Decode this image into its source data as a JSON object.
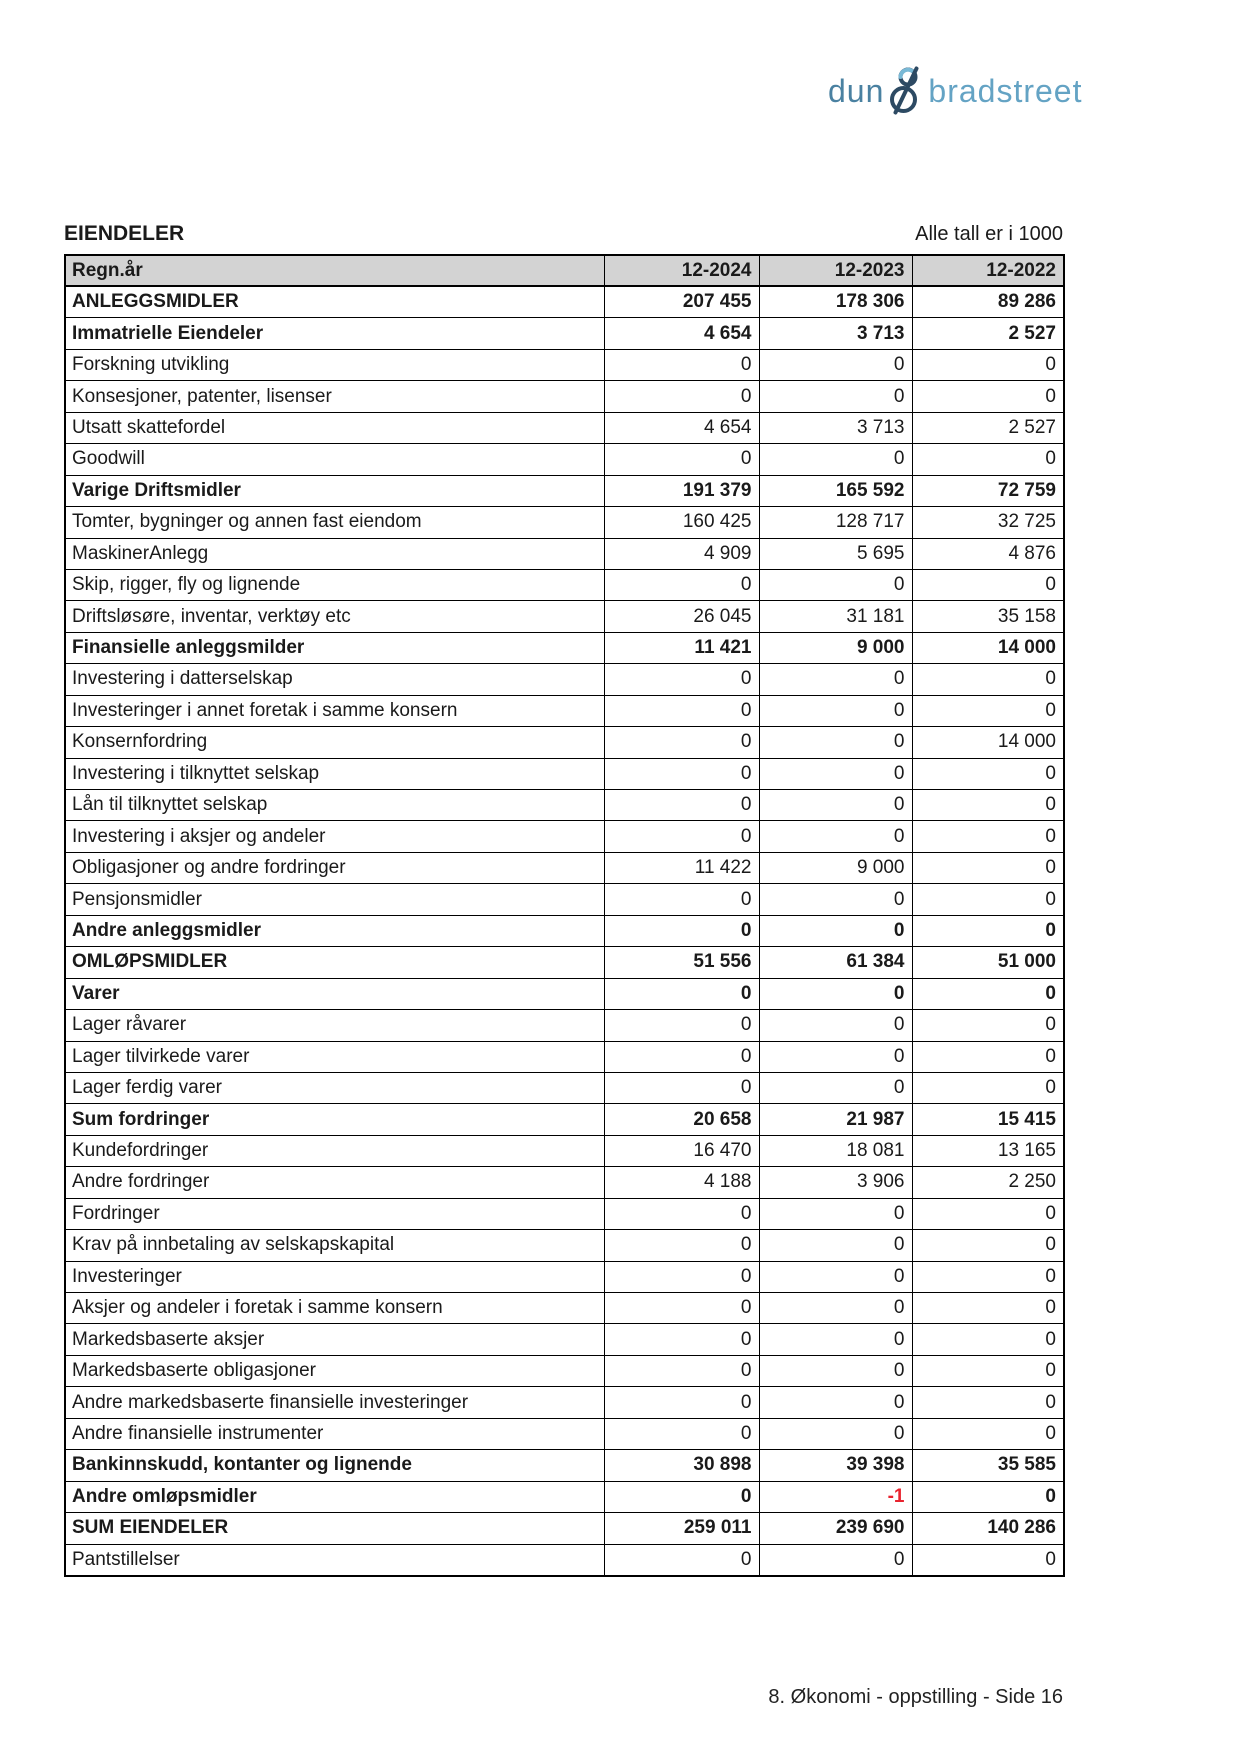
{
  "logo": {
    "part1": "dun",
    "part2": "bradstreet",
    "ampersand_dark": "#2d4a63",
    "ampersand_light": "#79b9d6"
  },
  "header": {
    "title": "EIENDELER",
    "units_note": "Alle tall er i 1000"
  },
  "table": {
    "columns": [
      "Regn.år",
      "12-2024",
      "12-2023",
      "12-2022"
    ],
    "negative_color": "#e8232e",
    "rows": [
      {
        "label": "ANLEGGSMIDLER",
        "bold": true,
        "values": [
          "207 455",
          "178 306",
          "89 286"
        ]
      },
      {
        "label": "Immatrielle Eiendeler",
        "bold": true,
        "values": [
          "4 654",
          "3 713",
          "2 527"
        ]
      },
      {
        "label": "Forskning utvikling",
        "bold": false,
        "values": [
          "0",
          "0",
          "0"
        ]
      },
      {
        "label": "Konsesjoner, patenter, lisenser",
        "bold": false,
        "values": [
          "0",
          "0",
          "0"
        ]
      },
      {
        "label": "Utsatt skattefordel",
        "bold": false,
        "values": [
          "4 654",
          "3 713",
          "2 527"
        ]
      },
      {
        "label": "Goodwill",
        "bold": false,
        "values": [
          "0",
          "0",
          "0"
        ]
      },
      {
        "label": "Varige Driftsmidler",
        "bold": true,
        "values": [
          "191 379",
          "165 592",
          "72 759"
        ]
      },
      {
        "label": "Tomter, bygninger og annen fast eiendom",
        "bold": false,
        "values": [
          "160 425",
          "128 717",
          "32 725"
        ]
      },
      {
        "label": "MaskinerAnlegg",
        "bold": false,
        "values": [
          "4 909",
          "5 695",
          "4 876"
        ]
      },
      {
        "label": "Skip, rigger, fly og lignende",
        "bold": false,
        "values": [
          "0",
          "0",
          "0"
        ]
      },
      {
        "label": "Driftsløsøre, inventar, verktøy etc",
        "bold": false,
        "values": [
          "26 045",
          "31 181",
          "35 158"
        ]
      },
      {
        "label": "Finansielle anleggsmilder",
        "bold": true,
        "values": [
          "11 421",
          "9 000",
          "14 000"
        ]
      },
      {
        "label": "Investering i datterselskap",
        "bold": false,
        "values": [
          "0",
          "0",
          "0"
        ]
      },
      {
        "label": "Investeringer i annet foretak i samme konsern",
        "bold": false,
        "values": [
          "0",
          "0",
          "0"
        ]
      },
      {
        "label": "Konsernfordring",
        "bold": false,
        "values": [
          "0",
          "0",
          "14 000"
        ]
      },
      {
        "label": "Investering i tilknyttet selskap",
        "bold": false,
        "values": [
          "0",
          "0",
          "0"
        ]
      },
      {
        "label": "Lån til tilknyttet selskap",
        "bold": false,
        "values": [
          "0",
          "0",
          "0"
        ]
      },
      {
        "label": "Investering i aksjer og andeler",
        "bold": false,
        "values": [
          "0",
          "0",
          "0"
        ]
      },
      {
        "label": "Obligasjoner og andre fordringer",
        "bold": false,
        "values": [
          "11 422",
          "9 000",
          "0"
        ]
      },
      {
        "label": "Pensjonsmidler",
        "bold": false,
        "values": [
          "0",
          "0",
          "0"
        ]
      },
      {
        "label": "Andre anleggsmidler",
        "bold": true,
        "values": [
          "0",
          "0",
          "0"
        ]
      },
      {
        "label": "OMLØPSMIDLER",
        "bold": true,
        "values": [
          "51 556",
          "61 384",
          "51 000"
        ]
      },
      {
        "label": "Varer",
        "bold": true,
        "values": [
          "0",
          "0",
          "0"
        ]
      },
      {
        "label": "Lager råvarer",
        "bold": false,
        "values": [
          "0",
          "0",
          "0"
        ]
      },
      {
        "label": "Lager tilvirkede varer",
        "bold": false,
        "values": [
          "0",
          "0",
          "0"
        ]
      },
      {
        "label": "Lager ferdig varer",
        "bold": false,
        "values": [
          "0",
          "0",
          "0"
        ]
      },
      {
        "label": "Sum fordringer",
        "bold": true,
        "values": [
          "20 658",
          "21 987",
          "15 415"
        ]
      },
      {
        "label": "Kundefordringer",
        "bold": false,
        "values": [
          "16 470",
          "18 081",
          "13 165"
        ]
      },
      {
        "label": "Andre fordringer",
        "bold": false,
        "values": [
          "4 188",
          "3 906",
          "2 250"
        ]
      },
      {
        "label": "Fordringer",
        "bold": false,
        "values": [
          "0",
          "0",
          "0"
        ]
      },
      {
        "label": "Krav på innbetaling av selskapskapital",
        "bold": false,
        "values": [
          "0",
          "0",
          "0"
        ]
      },
      {
        "label": "Investeringer",
        "bold": false,
        "values": [
          "0",
          "0",
          "0"
        ]
      },
      {
        "label": "Aksjer og andeler i foretak i samme konsern",
        "bold": false,
        "values": [
          "0",
          "0",
          "0"
        ]
      },
      {
        "label": "Markedsbaserte aksjer",
        "bold": false,
        "values": [
          "0",
          "0",
          "0"
        ]
      },
      {
        "label": "Markedsbaserte obligasjoner",
        "bold": false,
        "values": [
          "0",
          "0",
          "0"
        ]
      },
      {
        "label": "Andre markedsbaserte finansielle investeringer",
        "bold": false,
        "values": [
          "0",
          "0",
          "0"
        ]
      },
      {
        "label": "Andre finansielle instrumenter",
        "bold": false,
        "values": [
          "0",
          "0",
          "0"
        ]
      },
      {
        "label": "Bankinnskudd, kontanter og lignende",
        "bold": true,
        "values": [
          "30 898",
          "39 398",
          "35 585"
        ]
      },
      {
        "label": "Andre omløpsmidler",
        "bold": true,
        "values": [
          "0",
          "-1",
          "0"
        ]
      },
      {
        "label": "SUM EIENDELER",
        "bold": true,
        "values": [
          "259 011",
          "239 690",
          "140 286"
        ]
      },
      {
        "label": "Pantstillelser",
        "bold": false,
        "values": [
          "0",
          "0",
          "0"
        ]
      }
    ]
  },
  "footer": {
    "text": "8. Økonomi - oppstilling - Side 16"
  }
}
